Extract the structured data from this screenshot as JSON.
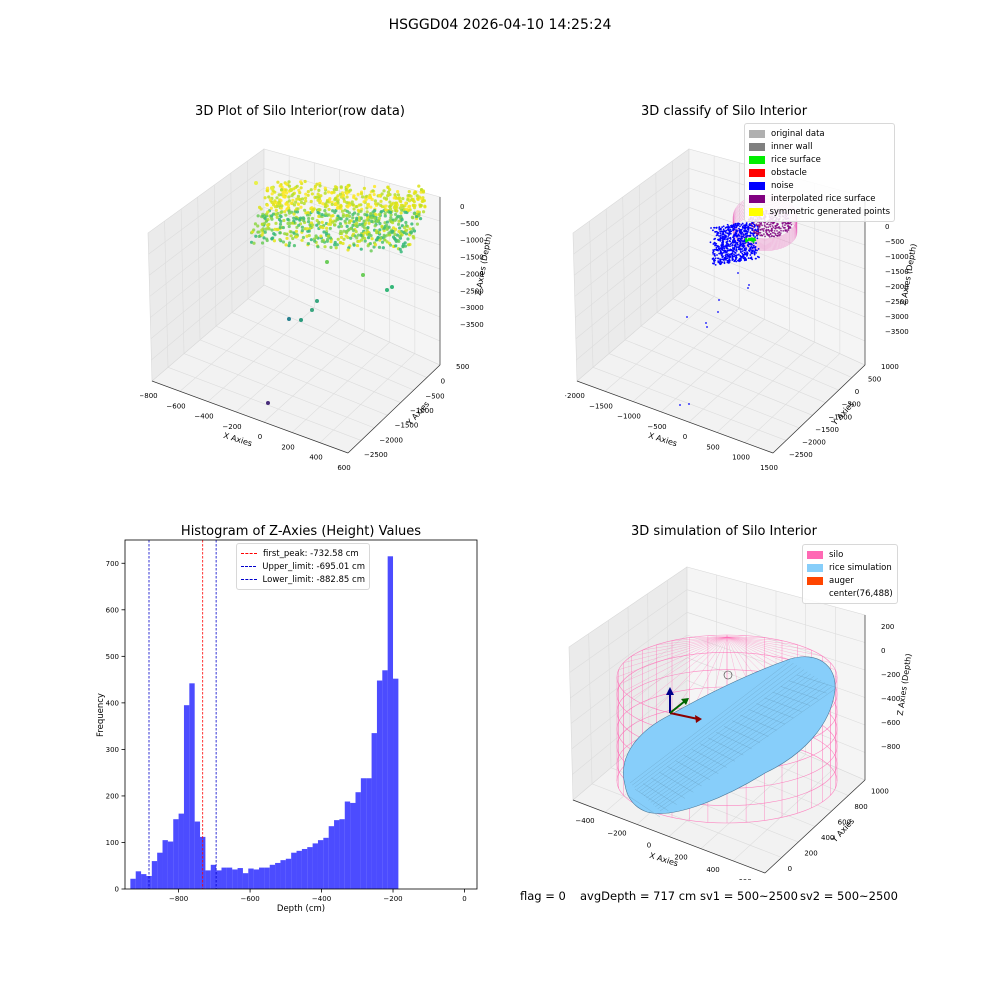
{
  "suptitle": "HSGGD04 2026-04-10 14:25:24",
  "chart_data": [
    {
      "type": "scatter3d",
      "title": "3D Plot of Silo Interior(row data)",
      "xlabel": "X Axies",
      "ylabel": "Y Axies",
      "zlabel": "Z Axies (Depth)",
      "x_ticks": [
        "−800",
        "−600",
        "−400",
        "−200",
        "0",
        "200",
        "400",
        "600"
      ],
      "y_ticks": [
        "500",
        "0",
        "−500",
        "−1000",
        "−1500",
        "−2000",
        "−2500"
      ],
      "z_ticks": [
        "0",
        "−500",
        "−1000",
        "−1500",
        "−2000",
        "−2500",
        "−3000",
        "−3500"
      ],
      "xlim": [
        -800,
        600
      ],
      "ylim": [
        -2500,
        500
      ],
      "zlim": [
        -3800,
        200
      ],
      "colormap": "viridis"
    },
    {
      "type": "scatter3d",
      "title": "3D classify of Silo Interior",
      "xlabel": "X Axies",
      "ylabel": "Y Axies",
      "zlabel": "Z Axies (Depth)",
      "x_ticks": [
        "−2000",
        "−1500",
        "−1000",
        "−500",
        "0",
        "500",
        "1000",
        "1500"
      ],
      "y_ticks": [
        "1000",
        "500",
        "0",
        "−500",
        "−1000",
        "−1500",
        "−2000",
        "−2500"
      ],
      "z_ticks": [
        "0",
        "−500",
        "−1000",
        "−1500",
        "−2000",
        "−2500",
        "−3000",
        "−3500"
      ],
      "xlim": [
        -2000,
        1500
      ],
      "ylim": [
        -2500,
        1000
      ],
      "zlim": [
        -3800,
        200
      ],
      "legend": [
        {
          "label": "original data",
          "color": "#b0b0b0"
        },
        {
          "label": "inner wall",
          "color": "#808080"
        },
        {
          "label": "rice surface",
          "color": "#00ee00"
        },
        {
          "label": "obstacle",
          "color": "#ff0000"
        },
        {
          "label": "noise",
          "color": "#0000ff"
        },
        {
          "label": "interpolated rice surface",
          "color": "#800080"
        },
        {
          "label": "symmetric generated points",
          "color": "#ffff00"
        }
      ],
      "legend_position": "top-right"
    },
    {
      "type": "bar",
      "title": "Histogram of Z-Axies (Height) Values",
      "xlabel": "Depth (cm)",
      "ylabel": "Frequency",
      "xlim": [
        -950,
        35
      ],
      "ylim": [
        0,
        750
      ],
      "x_ticks": [
        -800,
        -600,
        -400,
        -200,
        0
      ],
      "y_ticks": [
        0,
        100,
        200,
        300,
        400,
        500,
        600,
        700
      ],
      "bin_width": 15,
      "bin_start": -935,
      "values": [
        22,
        38,
        32,
        28,
        60,
        78,
        105,
        102,
        150,
        162,
        395,
        442,
        145,
        112,
        40,
        52,
        40,
        46,
        46,
        42,
        45,
        34,
        44,
        42,
        46,
        46,
        52,
        56,
        62,
        65,
        78,
        82,
        86,
        90,
        98,
        105,
        110,
        135,
        148,
        150,
        188,
        185,
        208,
        238,
        238,
        335,
        448,
        470,
        715,
        452
      ],
      "bar_color": "#0000ff",
      "lines": [
        {
          "label": "first_peak: -732.58 cm",
          "x": -732.58,
          "color": "#ff0000"
        },
        {
          "label": "Upper_limit: -695.01 cm",
          "x": -695.01,
          "color": "#0000cc"
        },
        {
          "label": "Lower_limit: -882.85 cm",
          "x": -882.85,
          "color": "#0000cc"
        }
      ],
      "legend_position": "top-center"
    },
    {
      "type": "surface3d",
      "title": "3D simulation of Silo Interior",
      "xlabel": "X Axies",
      "ylabel": "Y Axies",
      "zlabel": "Z Axies (Depth)",
      "x_ticks": [
        "−400",
        "−200",
        "0",
        "200",
        "400",
        "600"
      ],
      "y_ticks": [
        "0",
        "200",
        "400",
        "600",
        "800",
        "1000"
      ],
      "z_ticks": [
        "200",
        "0",
        "−200",
        "−400",
        "−600",
        "−800"
      ],
      "legend": [
        {
          "label": "silo",
          "color": "#ff69b4"
        },
        {
          "label": "rice simulation",
          "color": "#87cefa"
        },
        {
          "label": "auger",
          "color": "#ff4500"
        },
        {
          "label": "center(76,488)",
          "color": "#ffffff"
        }
      ],
      "legend_position": "top-right"
    }
  ],
  "status": {
    "flag": "flag = 0",
    "avg": "avgDepth = 717 cm",
    "sv1": "sv1 = 500~2500",
    "sv2": "sv2 = 500~2500"
  }
}
